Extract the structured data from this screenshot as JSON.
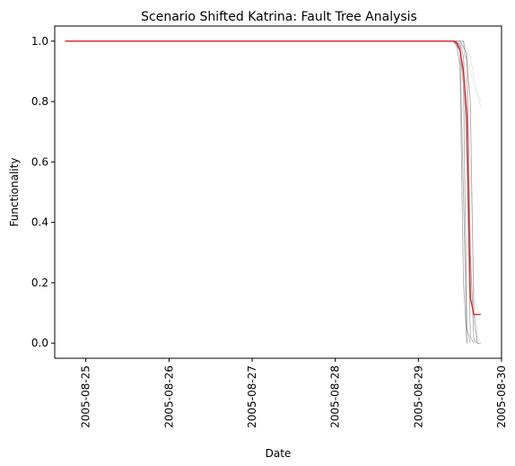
{
  "chart_data": {
    "type": "line",
    "title": "Scenario Shifted Katrina: Fault Tree Analysis",
    "xlabel": "Date",
    "ylabel": "Functionality",
    "xlim": [
      "2005-08-24 15:00",
      "2005-08-30 00:00"
    ],
    "ylim": [
      -0.05,
      1.05
    ],
    "x_ticks": [
      "2005-08-25",
      "2005-08-26",
      "2005-08-27",
      "2005-08-28",
      "2005-08-29",
      "2005-08-30"
    ],
    "y_ticks": [
      "0.0",
      "0.2",
      "0.4",
      "0.6",
      "0.8",
      "1.0"
    ],
    "grid": false,
    "legend": "none",
    "colors": {
      "mean": "#e41a1c",
      "ensemble": "#7f7f7f",
      "faint": "#cccccc"
    },
    "series": [
      {
        "role": "mean",
        "x": [
          "2005-08-24 18:00",
          "2005-08-29 10:00",
          "2005-08-29 11:00",
          "2005-08-29 12:00",
          "2005-08-29 13:00",
          "2005-08-29 14:00",
          "2005-08-29 15:00",
          "2005-08-29 16:00",
          "2005-08-29 17:00",
          "2005-08-29 18:00"
        ],
        "y": [
          1.0,
          1.0,
          0.995,
          0.97,
          0.9,
          0.75,
          0.15,
          0.095,
          0.095,
          0.095
        ]
      },
      {
        "role": "ensemble",
        "x": [
          "2005-08-29 10:00",
          "2005-08-29 11:00",
          "2005-08-29 12:00",
          "2005-08-29 13:00",
          "2005-08-29 14:00"
        ],
        "y": [
          1.0,
          0.99,
          0.92,
          0.2,
          0.0
        ]
      },
      {
        "role": "ensemble",
        "x": [
          "2005-08-29 10:00",
          "2005-08-29 11:00",
          "2005-08-29 12:00",
          "2005-08-29 13:00",
          "2005-08-29 14:00",
          "2005-08-29 15:00"
        ],
        "y": [
          1.0,
          1.0,
          0.98,
          0.85,
          0.05,
          0.0
        ]
      },
      {
        "role": "ensemble",
        "x": [
          "2005-08-29 10:00",
          "2005-08-29 12:00",
          "2005-08-29 13:00",
          "2005-08-29 14:00",
          "2005-08-29 15:00",
          "2005-08-29 16:00"
        ],
        "y": [
          1.0,
          0.99,
          0.95,
          0.6,
          0.02,
          0.0
        ]
      },
      {
        "role": "ensemble",
        "x": [
          "2005-08-29 10:00",
          "2005-08-29 12:00",
          "2005-08-29 14:00",
          "2005-08-29 15:00",
          "2005-08-29 16:00",
          "2005-08-29 17:00"
        ],
        "y": [
          1.0,
          1.0,
          0.96,
          0.3,
          0.01,
          0.0
        ]
      },
      {
        "role": "ensemble",
        "x": [
          "2005-08-29 10:00",
          "2005-08-29 13:00",
          "2005-08-29 14:00",
          "2005-08-29 15:00",
          "2005-08-29 16:00",
          "2005-08-29 17:00",
          "2005-08-29 18:00"
        ],
        "y": [
          1.0,
          1.0,
          0.93,
          0.8,
          0.1,
          0.0,
          0.0
        ]
      },
      {
        "role": "ensemble",
        "x": [
          "2005-08-29 10:00",
          "2005-08-29 12:00",
          "2005-08-29 13:00",
          "2005-08-29 14:00"
        ],
        "y": [
          1.0,
          0.97,
          0.5,
          0.0
        ]
      },
      {
        "role": "faint",
        "x": [
          "2005-08-29 12:00",
          "2005-08-29 15:00",
          "2005-08-29 16:00",
          "2005-08-29 18:00"
        ],
        "y": [
          1.0,
          0.9,
          0.85,
          0.8
        ]
      },
      {
        "role": "faint",
        "x": [
          "2005-08-29 13:00",
          "2005-08-29 15:00",
          "2005-08-29 16:00",
          "2005-08-29 18:00"
        ],
        "y": [
          1.0,
          0.95,
          0.88,
          0.78
        ]
      },
      {
        "role": "faint",
        "x": [
          "2005-08-29 12:00",
          "2005-08-29 14:00",
          "2005-08-29 15:00",
          "2005-08-29 16:00",
          "2005-08-29 18:00"
        ],
        "y": [
          1.0,
          0.7,
          0.3,
          0.05,
          0.0
        ]
      },
      {
        "role": "faint",
        "x": [
          "2005-08-29 13:00",
          "2005-08-29 15:00",
          "2005-08-29 16:00",
          "2005-08-29 17:00"
        ],
        "y": [
          1.0,
          0.6,
          0.2,
          0.0
        ]
      }
    ]
  }
}
